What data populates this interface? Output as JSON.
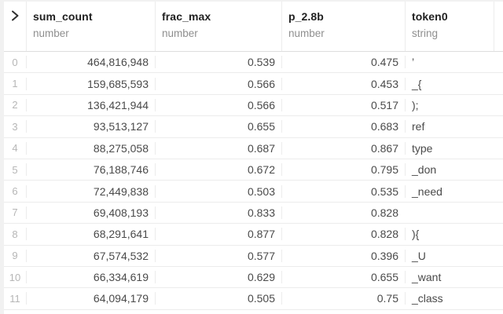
{
  "table": {
    "expander": {
      "icon_name": "chevron-right-icon"
    },
    "columns": [
      {
        "name": "sum_count",
        "type": "number",
        "align": "right"
      },
      {
        "name": "frac_max",
        "type": "number",
        "align": "right"
      },
      {
        "name": "p_2.8b",
        "type": "number",
        "align": "right"
      },
      {
        "name": "token0",
        "type": "string",
        "align": "left"
      }
    ],
    "rows": [
      {
        "index": "0",
        "cells": [
          "464,816,948",
          "0.539",
          "0.475",
          "’"
        ]
      },
      {
        "index": "1",
        "cells": [
          "159,685,593",
          "0.566",
          "0.453",
          "_{"
        ]
      },
      {
        "index": "2",
        "cells": [
          "136,421,944",
          "0.566",
          "0.517",
          ");"
        ]
      },
      {
        "index": "3",
        "cells": [
          "93,513,127",
          "0.655",
          "0.683",
          "ref"
        ]
      },
      {
        "index": "4",
        "cells": [
          "88,275,058",
          "0.687",
          "0.867",
          "type"
        ]
      },
      {
        "index": "5",
        "cells": [
          "76,188,746",
          "0.672",
          "0.795",
          "_don"
        ]
      },
      {
        "index": "6",
        "cells": [
          "72,449,838",
          "0.503",
          "0.535",
          "_need"
        ]
      },
      {
        "index": "7",
        "cells": [
          "69,408,193",
          "0.833",
          "0.828",
          ""
        ]
      },
      {
        "index": "8",
        "cells": [
          "68,291,641",
          "0.877",
          "0.828",
          "){"
        ]
      },
      {
        "index": "9",
        "cells": [
          "67,574,532",
          "0.577",
          "0.396",
          "_U"
        ]
      },
      {
        "index": "10",
        "cells": [
          "66,334,619",
          "0.629",
          "0.655",
          "_want"
        ]
      },
      {
        "index": "11",
        "cells": [
          "64,094,179",
          "0.505",
          "0.75",
          "_class"
        ]
      }
    ],
    "colors": {
      "header_text": "#212121",
      "type_label": "#8f8f8f",
      "cell_text": "#4a4a4a",
      "index_text": "#b6b6b6",
      "border": "#ececec"
    }
  }
}
